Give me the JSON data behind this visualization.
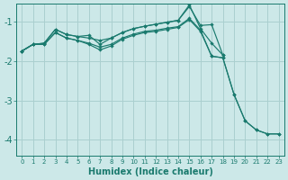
{
  "xlabel": "Humidex (Indice chaleur)",
  "bg_color": "#cce8e8",
  "grid_color": "#aacfcf",
  "line_color": "#1a7a6e",
  "xlim": [
    -0.5,
    23.5
  ],
  "ylim": [
    -4.4,
    -0.55
  ],
  "yticks": [
    -4,
    -3,
    -2,
    -1
  ],
  "xticks": [
    0,
    1,
    2,
    3,
    4,
    5,
    6,
    7,
    8,
    9,
    10,
    11,
    12,
    13,
    14,
    15,
    16,
    17,
    18,
    19,
    20,
    21,
    22,
    23
  ],
  "line_upper_x": [
    0,
    1,
    2,
    3,
    4,
    5,
    6,
    7,
    8,
    9,
    10,
    11,
    12,
    13,
    14,
    15,
    16,
    17,
    18
  ],
  "line_upper_y": [
    -1.75,
    -1.58,
    -1.55,
    -1.2,
    -1.33,
    -1.38,
    -1.42,
    -1.48,
    -1.42,
    -1.28,
    -1.18,
    -1.12,
    -1.07,
    -1.02,
    -0.97,
    -0.62,
    -1.1,
    -1.08,
    -1.85
  ],
  "line_zigzag_x": [
    0,
    1,
    2,
    3,
    4,
    5,
    6,
    7,
    8,
    9,
    10,
    11,
    12,
    13,
    14,
    15,
    16,
    17,
    18
  ],
  "line_zigzag_y": [
    -1.75,
    -1.58,
    -1.55,
    -1.2,
    -1.33,
    -1.38,
    -1.35,
    -1.58,
    -1.42,
    -1.28,
    -1.18,
    -1.12,
    -1.07,
    -1.02,
    -0.97,
    -0.58,
    -1.18,
    -1.55,
    -1.85
  ],
  "line_mid_x": [
    0,
    1,
    2,
    3,
    4,
    5,
    6,
    7,
    8,
    9,
    10,
    11,
    12,
    13,
    14,
    15,
    16,
    17,
    18,
    19,
    20,
    21,
    22,
    23
  ],
  "line_mid_y": [
    -1.75,
    -1.58,
    -1.58,
    -1.28,
    -1.42,
    -1.48,
    -1.55,
    -1.65,
    -1.58,
    -1.42,
    -1.32,
    -1.25,
    -1.22,
    -1.17,
    -1.13,
    -0.92,
    -1.22,
    -1.88,
    -1.92,
    -2.85,
    -3.52,
    -3.75,
    -3.85,
    -3.85
  ],
  "line_low_x": [
    0,
    1,
    2,
    3,
    4,
    5,
    6,
    7,
    8,
    9,
    10,
    11,
    12,
    13,
    14,
    15,
    16,
    17,
    18,
    19,
    20,
    21,
    22,
    23
  ],
  "line_low_y": [
    -1.75,
    -1.58,
    -1.58,
    -1.28,
    -1.42,
    -1.48,
    -1.58,
    -1.72,
    -1.62,
    -1.45,
    -1.35,
    -1.28,
    -1.25,
    -1.2,
    -1.15,
    -0.95,
    -1.25,
    -1.88,
    -1.92,
    -2.85,
    -3.52,
    -3.75,
    -3.85,
    -3.85
  ]
}
